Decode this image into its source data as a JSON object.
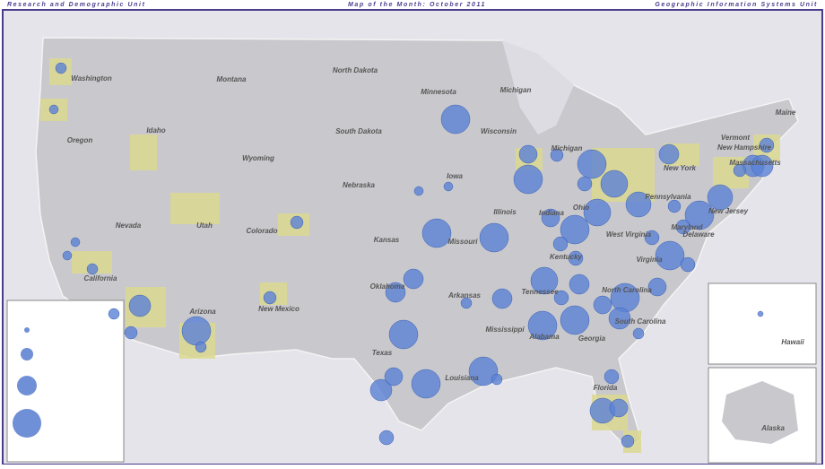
{
  "header": {
    "left": "Research and Demographic Unit",
    "center": "Map of the Month: October 2011",
    "right": "Geographic Information Systems Unit"
  },
  "states": [
    "Washington",
    "Montana",
    "North Dakota",
    "Minnesota",
    "Michigan",
    "Maine",
    "Oregon",
    "Idaho",
    "South Dakota",
    "Wisconsin",
    "Vermont",
    "New Hampshire",
    "Wyoming",
    "Iowa",
    "Nebraska",
    "Michigan",
    "New York",
    "Massachusetts",
    "Pennsylvania",
    "Nevada",
    "Utah",
    "Illinois",
    "Indiana",
    "Ohio",
    "New Jersey",
    "Colorado",
    "Kansas",
    "Missouri",
    "West Virginia",
    "Maryland",
    "Delaware",
    "Kentucky",
    "Virginia",
    "California",
    "Oklahoma",
    "Tennessee",
    "North Carolina",
    "Arkansas",
    "Arizona",
    "New Mexico",
    "South Carolina",
    "Mississippi",
    "Alabama",
    "Georgia",
    "Texas",
    "Louisiana",
    "Florida",
    "Hawaii",
    "Alaska"
  ]
}
